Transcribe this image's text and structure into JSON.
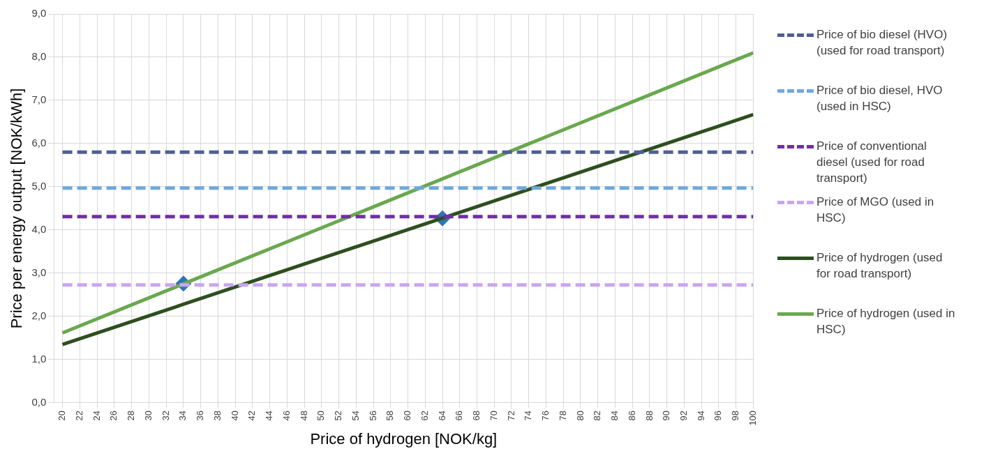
{
  "chart_data": {
    "type": "line",
    "xlabel": "Price of hydrogen [NOK/kg]",
    "ylabel": "Price per energy output [NOK/kWh]",
    "xlim": [
      19,
      100
    ],
    "xticks": [
      20,
      22,
      24,
      26,
      28,
      30,
      32,
      34,
      36,
      38,
      40,
      42,
      44,
      46,
      48,
      50,
      52,
      54,
      56,
      58,
      60,
      62,
      64,
      66,
      68,
      70,
      72,
      74,
      76,
      78,
      80,
      82,
      84,
      86,
      88,
      90,
      92,
      94,
      96,
      98,
      100
    ],
    "ylim": [
      0,
      9
    ],
    "yticks": [
      {
        "value": 0,
        "label": "0,0"
      },
      {
        "value": 1,
        "label": "1,0"
      },
      {
        "value": 2,
        "label": "2,0"
      },
      {
        "value": 3,
        "label": "3,0"
      },
      {
        "value": 4,
        "label": "4,0"
      },
      {
        "value": 5,
        "label": "5,0"
      },
      {
        "value": 6,
        "label": "6,0"
      },
      {
        "value": 7,
        "label": "7,0"
      },
      {
        "value": 8,
        "label": "8,0"
      },
      {
        "value": 9,
        "label": "9,0"
      }
    ],
    "grid": true,
    "legend": "right",
    "marker": "none",
    "series": [
      {
        "name": "Price of bio diesel (HVO) (used for road transport)",
        "type": "line",
        "color": "#4e5f93",
        "line_style": "dashed",
        "x": [
          20,
          100
        ],
        "values": [
          5.8,
          5.8
        ]
      },
      {
        "name": "Price of bio diesel, HVO (used in HSC)",
        "type": "line",
        "color": "#6fa8dc",
        "line_style": "dashed",
        "x": [
          20,
          100
        ],
        "values": [
          4.97,
          4.97
        ]
      },
      {
        "name": "Price of conventional diesel (used for road transport)",
        "type": "line",
        "color": "#7030a0",
        "line_style": "dashed",
        "x": [
          20,
          100
        ],
        "values": [
          4.31,
          4.31
        ]
      },
      {
        "name": "Price of MGO (used in HSC)",
        "type": "line",
        "color": "#c9a6f0",
        "line_style": "dashed",
        "x": [
          20,
          100
        ],
        "values": [
          2.73,
          2.73
        ]
      },
      {
        "name": "Price of hydrogen (used for road transport)",
        "type": "line",
        "color": "#2d4f1e",
        "line_style": "solid",
        "x": [
          20,
          100
        ],
        "values": [
          1.35,
          6.67
        ]
      },
      {
        "name": "Price of hydrogen (used in HSC)",
        "type": "line",
        "color": "#6aa84f",
        "line_style": "solid",
        "x": [
          20,
          100
        ],
        "values": [
          1.62,
          8.1
        ]
      },
      {
        "type": "scatter",
        "color": "#2e75b6",
        "marker": "diamond",
        "x": [
          34,
          64
        ],
        "values": [
          2.76,
          4.27
        ]
      }
    ]
  }
}
